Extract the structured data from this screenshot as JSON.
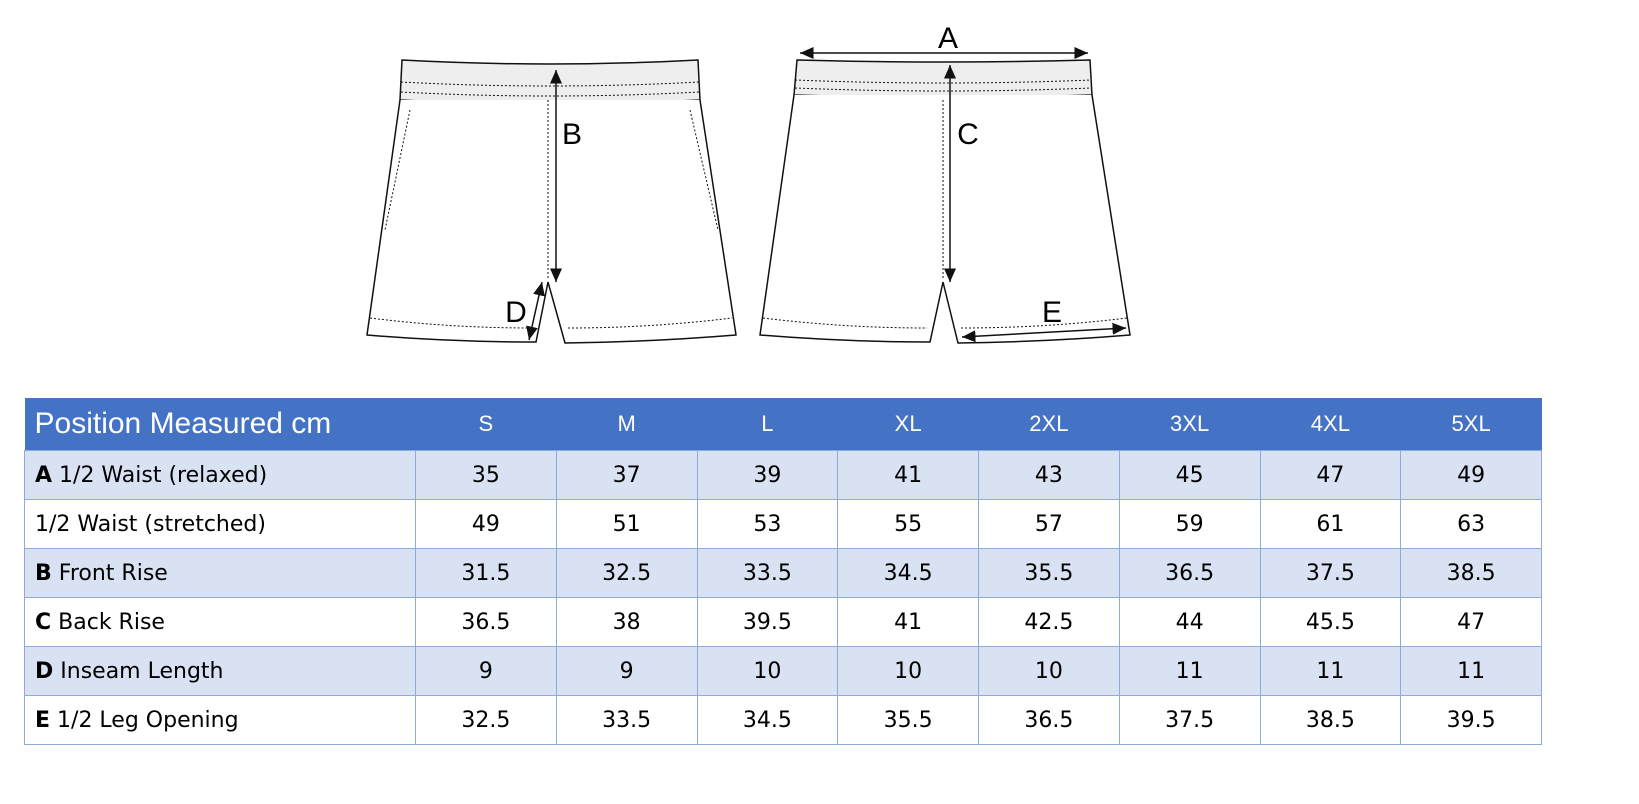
{
  "diagram": {
    "labels": [
      "A",
      "B",
      "C",
      "D",
      "E"
    ]
  },
  "table": {
    "header": [
      "Position Measured cm",
      "S",
      "M",
      "L",
      "XL",
      "2XL",
      "3XL",
      "4XL",
      "5XL"
    ],
    "rows": [
      {
        "key": "A",
        "label": "1/2 Waist (relaxed)",
        "values": [
          35,
          37,
          39,
          41,
          43,
          45,
          47,
          49
        ]
      },
      {
        "label": "1/2 Waist (stretched)",
        "values": [
          49,
          51,
          53,
          55,
          57,
          59,
          61,
          63
        ]
      },
      {
        "key": "B",
        "label": "Front Rise",
        "values": [
          31.5,
          32.5,
          33.5,
          34.5,
          35.5,
          36.5,
          37.5,
          38.5
        ]
      },
      {
        "key": "C",
        "label": "Back Rise",
        "values": [
          36.5,
          38,
          39.5,
          41,
          42.5,
          44,
          45.5,
          47
        ]
      },
      {
        "key": "D",
        "label": "Inseam Length",
        "values": [
          9,
          9,
          10,
          10,
          10,
          11,
          11,
          11
        ]
      },
      {
        "key": "E",
        "label": "1/2 Leg Opening",
        "values": [
          32.5,
          33.5,
          34.5,
          35.5,
          36.5,
          37.5,
          38.5,
          39.5
        ]
      }
    ]
  }
}
